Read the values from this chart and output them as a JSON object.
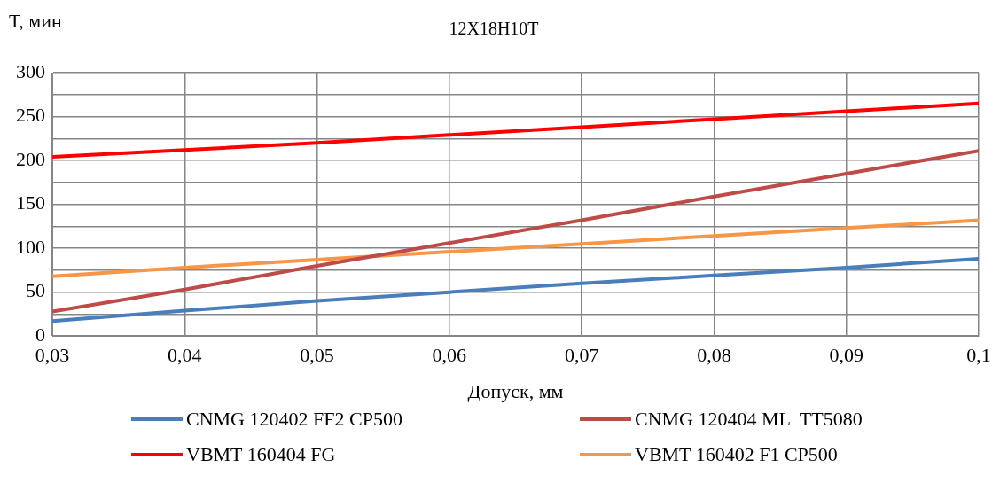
{
  "chart_data": {
    "type": "line",
    "title": "12Х18Н10Т",
    "xlabel": "Допуск, мм",
    "ylabel": "Т, мин",
    "x": [
      0.03,
      0.04,
      0.05,
      0.06,
      0.07,
      0.08,
      0.09,
      0.1
    ],
    "series": [
      {
        "name": "CNMG 120402 FF2 CP500",
        "color": "#4a7ebb",
        "values": [
          17,
          29,
          40,
          50,
          60,
          69,
          78,
          88
        ]
      },
      {
        "name": "CNMG 120404 ML  TT5080",
        "color": "#be4b48",
        "values": [
          28,
          53,
          80,
          106,
          132,
          159,
          185,
          211
        ]
      },
      {
        "name": "VBMT 160404 FG",
        "color": "#ff0000",
        "values": [
          204,
          212,
          220,
          229,
          238,
          247,
          256,
          265
        ]
      },
      {
        "name": "VBMT 160402 F1 CP500",
        "color": "#f79646",
        "values": [
          68,
          78,
          87,
          96,
          105,
          114,
          123,
          132
        ]
      }
    ],
    "xlim": [
      0.03,
      0.1
    ],
    "xticks": [
      {
        "value": 0.03,
        "label": "0,03"
      },
      {
        "value": 0.04,
        "label": "0,04"
      },
      {
        "value": 0.05,
        "label": "0,05"
      },
      {
        "value": 0.06,
        "label": "0,06"
      },
      {
        "value": 0.07,
        "label": "0,07"
      },
      {
        "value": 0.08,
        "label": "0,08"
      },
      {
        "value": 0.09,
        "label": "0,09"
      },
      {
        "value": 0.1,
        "label": "0,1"
      }
    ],
    "ylim": [
      0,
      300
    ],
    "yticks": [
      0,
      {
        "value": 25,
        "label": null
      },
      50,
      {
        "value": 75,
        "label": null
      },
      100,
      {
        "value": 125,
        "label": null
      },
      150,
      {
        "value": 175,
        "label": null
      },
      200,
      {
        "value": 225,
        "label": null
      },
      250,
      {
        "value": 275,
        "label": null
      },
      300
    ],
    "grid": true,
    "legend": "bottom",
    "marker": "none",
    "line_style": "solid"
  }
}
